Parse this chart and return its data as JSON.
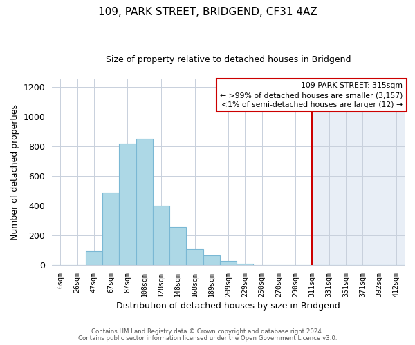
{
  "title": "109, PARK STREET, BRIDGEND, CF31 4AZ",
  "subtitle": "Size of property relative to detached houses in Bridgend",
  "xlabel": "Distribution of detached houses by size in Bridgend",
  "ylabel": "Number of detached properties",
  "bar_labels": [
    "6sqm",
    "26sqm",
    "47sqm",
    "67sqm",
    "87sqm",
    "108sqm",
    "128sqm",
    "148sqm",
    "168sqm",
    "189sqm",
    "209sqm",
    "229sqm",
    "250sqm",
    "270sqm",
    "290sqm",
    "311sqm",
    "331sqm",
    "351sqm",
    "371sqm",
    "392sqm",
    "412sqm"
  ],
  "bar_values": [
    0,
    0,
    95,
    490,
    820,
    850,
    400,
    255,
    110,
    65,
    30,
    12,
    0,
    0,
    0,
    0,
    0,
    0,
    0,
    0,
    0
  ],
  "bar_color": "#add8e6",
  "bar_edge_color": "#7ab8d4",
  "vline_x_index": 15,
  "vline_color": "#cc0000",
  "ylim": [
    0,
    1250
  ],
  "yticks": [
    0,
    200,
    400,
    600,
    800,
    1000,
    1200
  ],
  "legend_title": "109 PARK STREET: 315sqm",
  "legend_line1": "← >99% of detached houses are smaller (3,157)",
  "legend_line2": "<1% of semi-detached houses are larger (12) →",
  "legend_box_color": "#ffffff",
  "legend_box_edge_color": "#cc0000",
  "footer_line1": "Contains HM Land Registry data © Crown copyright and database right 2024.",
  "footer_line2": "Contains public sector information licensed under the Open Government Licence v3.0.",
  "background_color": "#ffffff",
  "grid_color": "#c8d0dc",
  "right_fill_color": "#e8eef6"
}
